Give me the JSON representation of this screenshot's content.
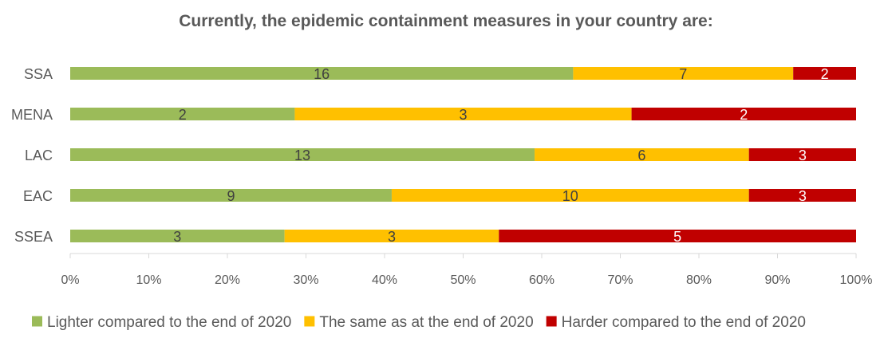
{
  "chart_data": {
    "type": "bar",
    "orientation": "horizontal",
    "stacked": "percent",
    "title": "Currently, the epidemic containment measures in your country are:",
    "categories": [
      "SSA",
      "MENA",
      "LAC",
      "EAC",
      "SSEA"
    ],
    "series": [
      {
        "name": "Lighter compared to the end of 2020",
        "color": "#9BBB59",
        "values": [
          16,
          2,
          13,
          9,
          3
        ],
        "label_color": "#404040"
      },
      {
        "name": "The same as at the end of 2020",
        "color": "#FFC000",
        "values": [
          7,
          3,
          6,
          10,
          3
        ],
        "label_color": "#404040"
      },
      {
        "name": "Harder compared to the end of 2020",
        "color": "#C00000",
        "values": [
          2,
          2,
          3,
          3,
          5
        ],
        "label_color": "#ffffff"
      }
    ],
    "xlim": [
      0,
      100
    ],
    "xticks": [
      "0%",
      "10%",
      "20%",
      "30%",
      "40%",
      "50%",
      "60%",
      "70%",
      "80%",
      "90%",
      "100%"
    ],
    "xlabel": "",
    "ylabel": "",
    "grid": false,
    "legend": "bottom"
  }
}
